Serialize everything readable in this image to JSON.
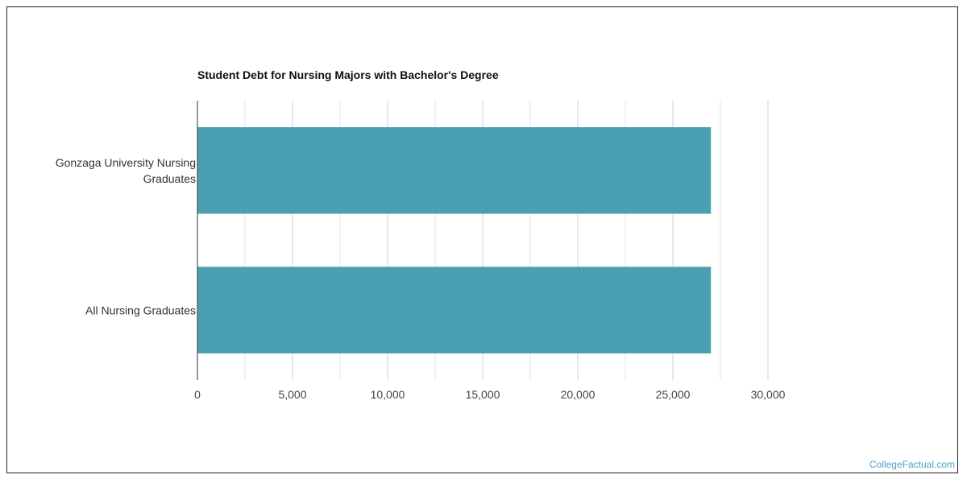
{
  "chart_data": {
    "type": "bar",
    "orientation": "horizontal",
    "title": "Student Debt for Nursing Majors with Bachelor's Degree",
    "categories": [
      "Gonzaga University Nursing Graduates",
      "All Nursing Graduates"
    ],
    "category_lines": [
      [
        "Gonzaga University Nursing",
        "Graduates"
      ],
      [
        "All Nursing Graduates"
      ]
    ],
    "values": [
      27000,
      27000
    ],
    "xlim": [
      0,
      30000
    ],
    "x_ticks": [
      0,
      5000,
      10000,
      15000,
      20000,
      25000,
      30000
    ],
    "x_tick_labels": [
      "0",
      "5,000",
      "10,000",
      "15,000",
      "20,000",
      "25,000",
      "30,000"
    ],
    "xlabel": "",
    "ylabel": "",
    "grid": true,
    "bar_color": "#4aa0b2",
    "gridline_color": "#d6d6d6",
    "legend": "none"
  },
  "footer": {
    "credit": "CollegeFactual.com"
  },
  "colors": {
    "credit": "#4aa0c4",
    "frame": "#222222"
  }
}
